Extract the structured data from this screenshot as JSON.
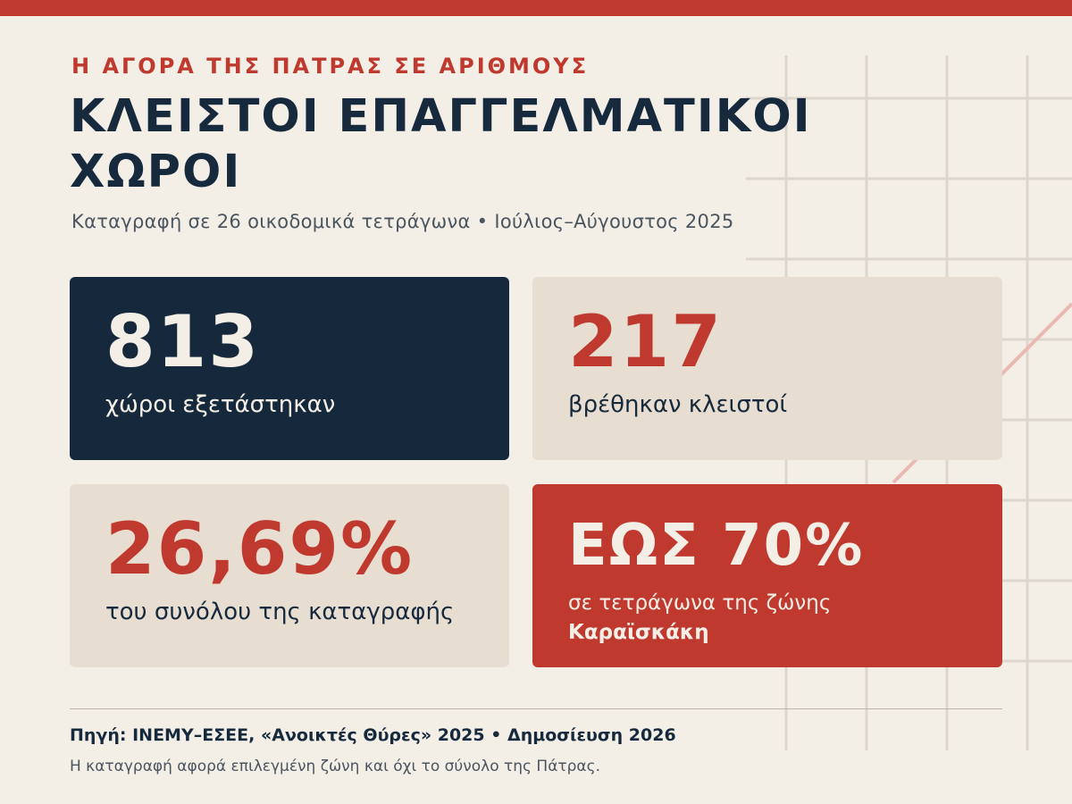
{
  "header": {
    "kicker": "Η ΑΓΟΡΑ ΤΗΣ ΠΑΤΡΑΣ ΣΕ ΑΡΙΘΜΟΥΣ",
    "title_line1": "ΚΛΕΙΣΤΟΙ ΕΠΑΓΓΕΛΜΑΤΙΚΟΙ",
    "title_line2": "ΧΩΡΟΙ",
    "subtitle": "Καταγραφή σε 26 οικοδομικά τετράγωνα • Ιούλιος–Αύγουστος 2025"
  },
  "stats": {
    "examined": {
      "value": "813",
      "label": "χώροι εξετάστηκαν"
    },
    "closed": {
      "value": "217",
      "label": "βρέθηκαν κλειστοί"
    },
    "percent": {
      "value": "26,69%",
      "label": "του συνόλου της καταγραφής"
    },
    "peak": {
      "value": "ΕΩΣ 70%",
      "label": "σε τετράγωνα της ζώνης",
      "zone": "Καραϊσκάκη"
    }
  },
  "footer": {
    "source": "Πηγή: ΙΝΕΜΥ–ΕΣΕΕ, «Ανοικτές Θύρες» 2025 • Δημοσίευση 2026",
    "note": "Η καταγραφή αφορά επιλεγμένη ζώνη και όχι το σύνολο της Πάτρας."
  },
  "colors": {
    "accent_red": "#c0392f",
    "navy": "#16283b",
    "beige": "#e7ddd1",
    "background": "#f3efe7"
  }
}
